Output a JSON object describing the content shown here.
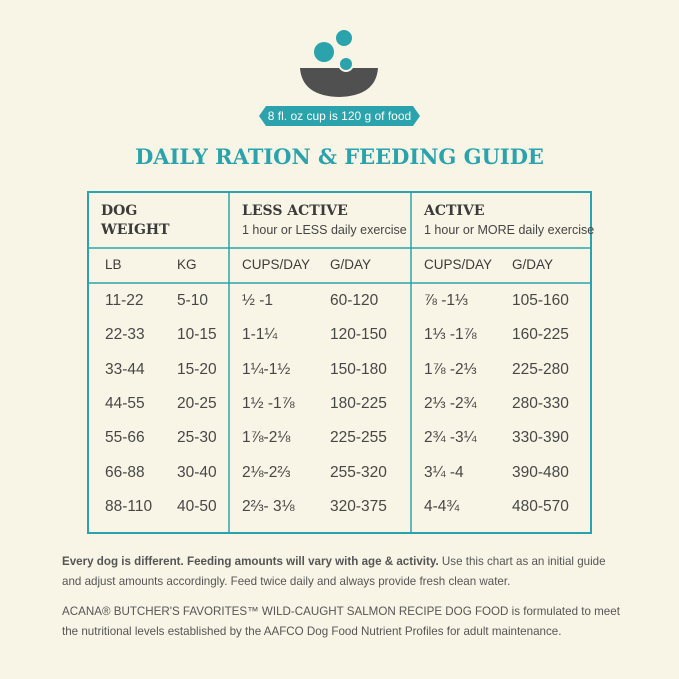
{
  "header": {
    "banner": "8 fl. oz cup is 120 g of food",
    "title": "DAILY RATION & FEEDING GUIDE"
  },
  "table": {
    "groups": [
      {
        "title": "DOG WEIGHT",
        "subtitle": null
      },
      {
        "title": "LESS ACTIVE",
        "subtitle": "1 hour or LESS daily exercise"
      },
      {
        "title": "ACTIVE",
        "subtitle": "1 hour or MORE daily exercise"
      }
    ],
    "columns": [
      "LB",
      "KG",
      "CUPS/DAY",
      "G/DAY",
      "CUPS/DAY",
      "G/DAY"
    ],
    "rows": [
      [
        "11-22",
        "5-10",
        "½ -1",
        "60-120",
        "⅞ -1⅓",
        "105-160"
      ],
      [
        "22-33",
        "10-15",
        "1-1¼",
        "120-150",
        "1⅓ -1⅞",
        "160-225"
      ],
      [
        "33-44",
        "15-20",
        "1¼-1½",
        "150-180",
        "1⅞ -2⅓",
        "225-280"
      ],
      [
        "44-55",
        "20-25",
        "1½ -1⅞",
        "180-225",
        "2⅓ -2¾",
        "280-330"
      ],
      [
        "55-66",
        "25-30",
        "1⅞-2⅛",
        "225-255",
        "2¾ -3¼",
        "330-390"
      ],
      [
        "66-88",
        "30-40",
        "2⅛-2⅔",
        "255-320",
        "3¼ -4",
        "390-480"
      ],
      [
        "88-110",
        "40-50",
        "2⅔- 3⅛",
        "320-375",
        "4-4¾",
        "480-570"
      ]
    ]
  },
  "notes": [
    {
      "bold": "Every dog is different. Feeding amounts will vary with age & activity.",
      "text": " Use this chart as an initial guide and adjust amounts accordingly. Feed twice daily and always provide fresh clean water."
    },
    {
      "text": "ACANA® BUTCHER'S FAVORITES™ WILD-CAUGHT SALMON RECIPE DOG FOOD is formulated to meet the nutritional levels established by the AAFCO Dog Food Nutrient Profiles for adult maintenance."
    }
  ]
}
